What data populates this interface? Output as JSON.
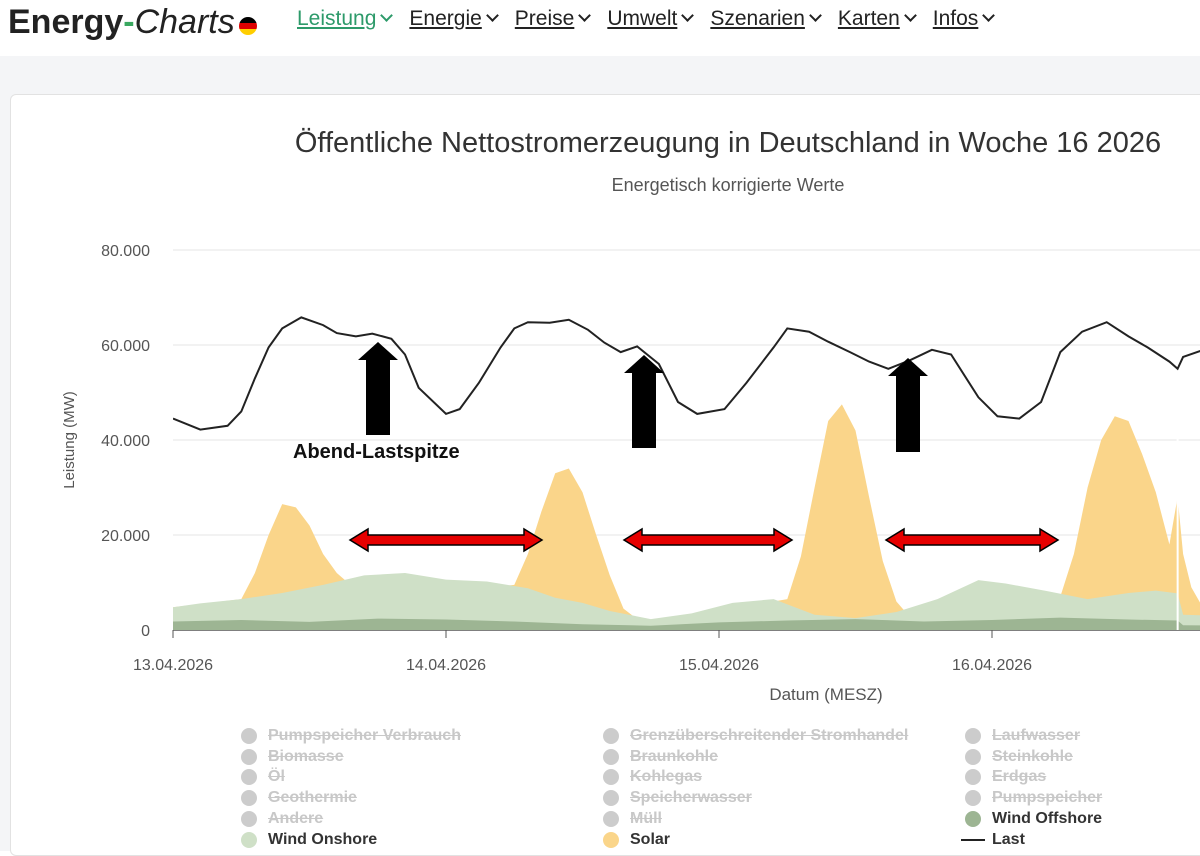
{
  "header": {
    "logo": {
      "part1": "Energy",
      "dash": "-",
      "part2": "Charts"
    },
    "menu": [
      {
        "label": "Leistung",
        "active": true
      },
      {
        "label": "Energie",
        "active": false
      },
      {
        "label": "Preise",
        "active": false
      },
      {
        "label": "Umwelt",
        "active": false
      },
      {
        "label": "Szenarien",
        "active": false
      },
      {
        "label": "Karten",
        "active": false
      },
      {
        "label": "Infos",
        "active": false
      }
    ]
  },
  "chart_data": {
    "type": "area",
    "title": "Öffentliche Nettostromerzeugung in Deutschland in Woche 16 2026",
    "subtitle": "Energetisch korrigierte Werte",
    "xlabel": "Datum (MESZ)",
    "ylabel": "Leistung (MW)",
    "x_ticks": [
      "13.04.2026",
      "14.04.2026",
      "15.04.2026",
      "16.04.2026"
    ],
    "y_ticks": [
      "0",
      "20.000",
      "40.000",
      "60.000",
      "80.000"
    ],
    "xlim_days": [
      0,
      3.95
    ],
    "ylim": [
      0,
      80000
    ],
    "grid": true,
    "annotation": "Abend-Lastspitze",
    "series": [
      {
        "name": "Wind Offshore",
        "color": "#9db593",
        "x": [
          0,
          0.25,
          0.5,
          0.75,
          1,
          1.25,
          1.5,
          1.75,
          2,
          2.25,
          2.5,
          2.75,
          3,
          3.25,
          3.5,
          3.68,
          3.7,
          3.95
        ],
        "y": [
          1800,
          2100,
          1700,
          2400,
          2200,
          1800,
          1200,
          900,
          1600,
          2000,
          2300,
          1800,
          2100,
          2600,
          2200,
          2000,
          1000,
          900
        ]
      },
      {
        "name": "Wind Onshore",
        "color": "#cfe0c7",
        "x": [
          0,
          0.1,
          0.25,
          0.4,
          0.55,
          0.7,
          0.85,
          1,
          1.15,
          1.3,
          1.4,
          1.5,
          1.6,
          1.75,
          1.9,
          2.05,
          2.2,
          2.35,
          2.5,
          2.65,
          2.8,
          2.95,
          3.05,
          3.2,
          3.35,
          3.5,
          3.6,
          3.68,
          3.7,
          3.95
        ],
        "y": [
          4800,
          5600,
          6500,
          7800,
          9500,
          11500,
          12000,
          10600,
          10200,
          8800,
          6800,
          5700,
          4000,
          2300,
          3500,
          5700,
          6500,
          3200,
          2500,
          3800,
          6500,
          10500,
          9800,
          8200,
          6500,
          7800,
          8300,
          7700,
          3200,
          2800
        ]
      },
      {
        "name": "Solar",
        "color": "#fad58a",
        "x": [
          0,
          0.25,
          0.3,
          0.35,
          0.4,
          0.45,
          0.5,
          0.55,
          0.6,
          0.65,
          0.7,
          0.8,
          1.25,
          1.3,
          1.35,
          1.4,
          1.45,
          1.5,
          1.55,
          1.6,
          1.65,
          1.7,
          1.8,
          2.25,
          2.3,
          2.35,
          2.4,
          2.45,
          2.5,
          2.55,
          2.6,
          2.65,
          2.7,
          2.8,
          3.25,
          3.3,
          3.35,
          3.4,
          3.45,
          3.5,
          3.55,
          3.6,
          3.65,
          3.68,
          3.7,
          3.73,
          3.78,
          3.95
        ],
        "y": [
          4800,
          6500,
          12000,
          20000,
          26500,
          25800,
          22000,
          16000,
          12000,
          9500,
          7800,
          7000,
          9500,
          16000,
          25000,
          33000,
          34000,
          29000,
          20000,
          11500,
          4500,
          2300,
          2000,
          6500,
          15500,
          30000,
          44000,
          47500,
          42000,
          28000,
          14500,
          6000,
          2700,
          2200,
          7000,
          16000,
          30000,
          40000,
          45000,
          44000,
          37000,
          29000,
          18000,
          28000,
          16000,
          9000,
          4000,
          3000
        ]
      },
      {
        "name": "Last",
        "color": "#222",
        "x": [
          0,
          0.1,
          0.2,
          0.25,
          0.3,
          0.35,
          0.4,
          0.47,
          0.55,
          0.6,
          0.67,
          0.73,
          0.8,
          0.85,
          0.9,
          1,
          1.05,
          1.12,
          1.2,
          1.25,
          1.3,
          1.38,
          1.45,
          1.52,
          1.58,
          1.64,
          1.7,
          1.78,
          1.85,
          1.92,
          2.02,
          2.1,
          2.2,
          2.25,
          2.33,
          2.4,
          2.48,
          2.55,
          2.62,
          2.7,
          2.78,
          2.85,
          2.95,
          3.02,
          3.1,
          3.18,
          3.25,
          3.33,
          3.42,
          3.5,
          3.57,
          3.65,
          3.68,
          3.7,
          3.8,
          3.88,
          3.95
        ],
        "y": [
          44500,
          42200,
          43000,
          46000,
          53000,
          59500,
          63500,
          65800,
          64200,
          62500,
          61800,
          62400,
          61300,
          58000,
          51000,
          45500,
          46500,
          52000,
          59500,
          63500,
          64800,
          64700,
          65300,
          63200,
          60500,
          58500,
          59700,
          56000,
          48000,
          45500,
          46500,
          52000,
          59500,
          63500,
          62800,
          60700,
          58500,
          56500,
          55000,
          56800,
          59000,
          58000,
          49000,
          45000,
          44500,
          48000,
          58500,
          62800,
          64800,
          61800,
          59500,
          56500,
          55000,
          57500,
          59500,
          57500,
          52500
        ]
      }
    ]
  },
  "legend": [
    {
      "label": "Pumpspeicher Verbrauch",
      "on": false,
      "color": "#cccccc"
    },
    {
      "label": "Biomasse",
      "on": false,
      "color": "#cccccc"
    },
    {
      "label": "Öl",
      "on": false,
      "color": "#cccccc"
    },
    {
      "label": "Geothermie",
      "on": false,
      "color": "#cccccc"
    },
    {
      "label": "Andere",
      "on": false,
      "color": "#cccccc"
    },
    {
      "label": "Wind Onshore",
      "on": true,
      "color": "#cfe0c7"
    },
    {
      "label": "Grenzüberschreitender Stromhandel",
      "on": false,
      "color": "#cccccc"
    },
    {
      "label": "Braunkohle",
      "on": false,
      "color": "#cccccc"
    },
    {
      "label": "Kohlegas",
      "on": false,
      "color": "#cccccc"
    },
    {
      "label": "Speicherwasser",
      "on": false,
      "color": "#cccccc"
    },
    {
      "label": "Müll",
      "on": false,
      "color": "#cccccc"
    },
    {
      "label": "Solar",
      "on": true,
      "color": "#fad58a"
    },
    {
      "label": "Laufwasser",
      "on": false,
      "color": "#cccccc"
    },
    {
      "label": "Steinkohle",
      "on": false,
      "color": "#cccccc"
    },
    {
      "label": "Erdgas",
      "on": false,
      "color": "#cccccc"
    },
    {
      "label": "Pumpspeicher",
      "on": false,
      "color": "#cccccc"
    },
    {
      "label": "Wind Offshore",
      "on": true,
      "color": "#9db593"
    },
    {
      "label": "Last",
      "on": true,
      "color": "#222222",
      "type": "line"
    }
  ]
}
